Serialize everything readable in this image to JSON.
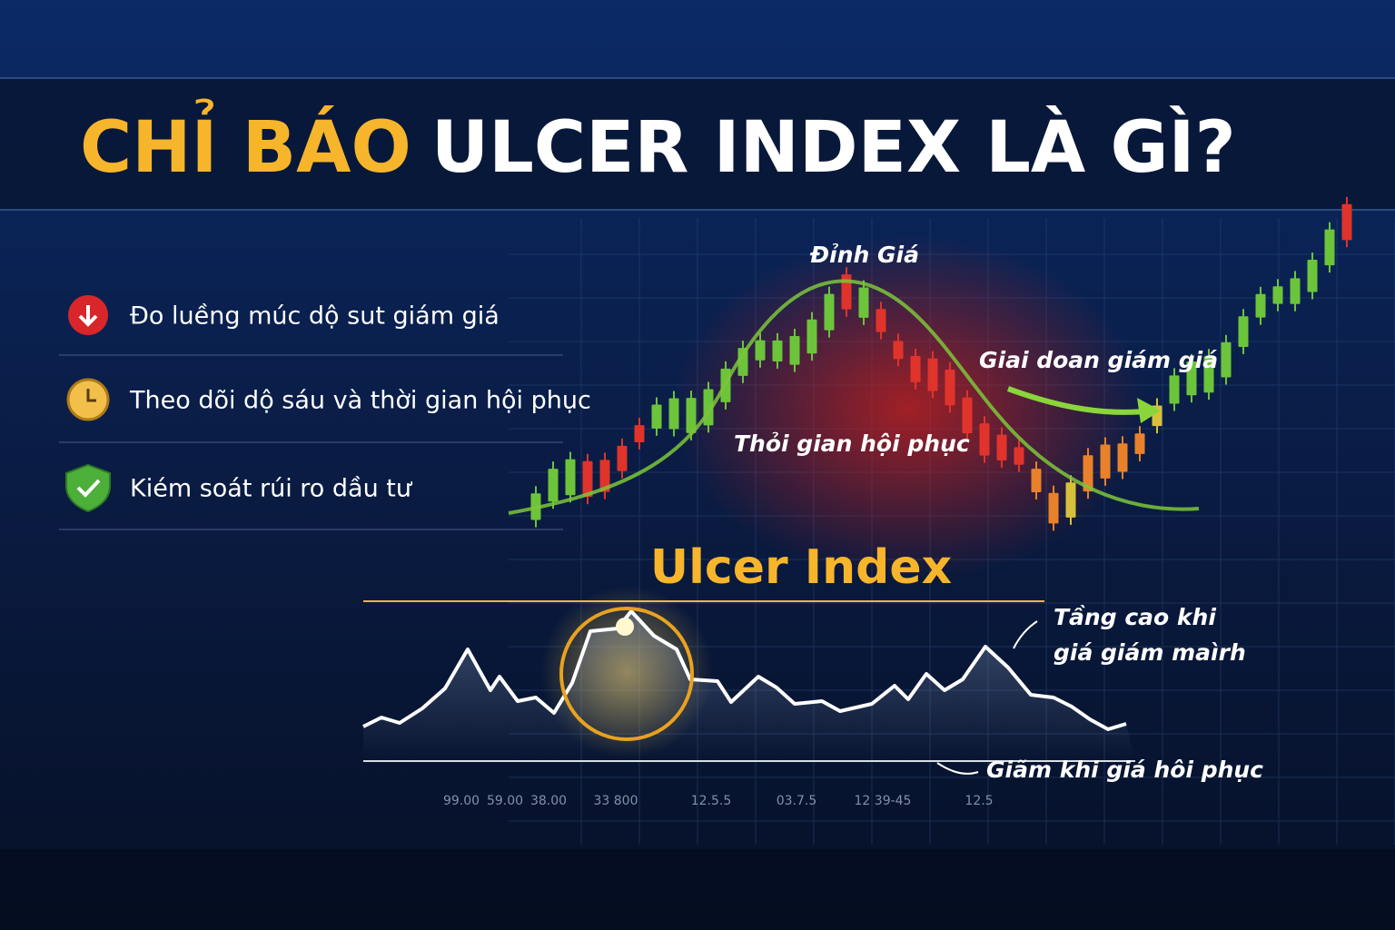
{
  "header": {
    "title_highlight": "CHỈ BÁO",
    "title_rest": "ULCER INDEX LÀ GÌ?"
  },
  "bullets": [
    "Đo luềng múc dộ sut giám giá",
    "Theo dõi dộ sáu và thời gian hội phục",
    "Kiém soát rúi ro dầu tư"
  ],
  "chart": {
    "peak_label": "Đỉnh Giá",
    "decline_label": "Giai doan giám giá",
    "recovery_label": "Thỏi gian hội phục",
    "indicator_label": "Ulcer Index",
    "rise_note": [
      "Tầng cao khi",
      "giá giám maìrh"
    ],
    "fall_note": "Giãm khi giá hôi phục",
    "axis_labels": [
      "99.00",
      "59.00",
      "38.00",
      "33 800",
      "12.5.5",
      "03.7.5",
      "12 39-45",
      "12.5"
    ]
  }
}
